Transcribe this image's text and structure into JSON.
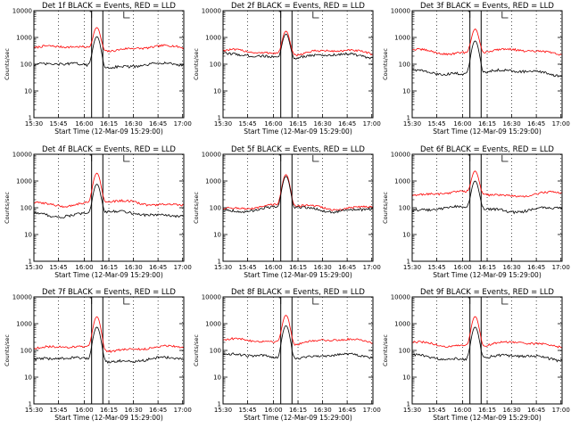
{
  "chart_data": [
    {
      "type": "line",
      "title": "Det 1f BLACK = Events, RED = LLD",
      "xlabel": "Start Time (12-Mar-09 15:29:00)",
      "ylabel": "Counts/sec",
      "ylim": [
        1,
        10000
      ],
      "y_scale": "log",
      "x_ticks": [
        "15:30",
        "15:45",
        "16:00",
        "16:15",
        "16:30",
        "16:45",
        "17:00"
      ],
      "series": [
        {
          "color": "#ff0000",
          "baseline": 400,
          "peak": 2000
        },
        {
          "color": "#000000",
          "baseline": 90,
          "peak": 1000
        }
      ]
    },
    {
      "type": "line",
      "title": "Det 2f BLACK = Events, RED = LLD",
      "xlabel": "Start Time (12-Mar-09 15:29:00)",
      "ylabel": "Counts/sec",
      "ylim": [
        1,
        10000
      ],
      "y_scale": "log",
      "x_ticks": [
        "15:30",
        "15:45",
        "16:00",
        "16:15",
        "16:30",
        "16:45",
        "17:00"
      ],
      "series": [
        {
          "color": "#ff0000",
          "baseline": 280,
          "peak": 1500
        },
        {
          "color": "#000000",
          "baseline": 200,
          "peak": 1200
        }
      ]
    },
    {
      "type": "line",
      "title": "Det 3f BLACK = Events, RED = LLD",
      "xlabel": "Start Time (12-Mar-09 15:29:00)",
      "ylabel": "Counts/sec",
      "ylim": [
        1,
        10000
      ],
      "y_scale": "log",
      "x_ticks": [
        "15:30",
        "15:45",
        "16:00",
        "16:15",
        "16:30",
        "16:45",
        "17:00"
      ],
      "series": [
        {
          "color": "#ff0000",
          "baseline": 300,
          "peak": 1800
        },
        {
          "color": "#000000",
          "baseline": 50,
          "peak": 700
        }
      ]
    },
    {
      "type": "line",
      "title": "Det 4f BLACK = Events, RED = LLD",
      "xlabel": "Start Time (12-Mar-09 15:29:00)",
      "ylabel": "Counts/sec",
      "ylim": [
        1,
        10000
      ],
      "y_scale": "log",
      "x_ticks": [
        "15:30",
        "15:45",
        "16:00",
        "16:15",
        "16:30",
        "16:45",
        "17:00"
      ],
      "series": [
        {
          "color": "#ff0000",
          "baseline": 150,
          "peak": 1800
        },
        {
          "color": "#000000",
          "baseline": 60,
          "peak": 700
        }
      ]
    },
    {
      "type": "line",
      "title": "Det 5f BLACK = Events, RED = LLD",
      "xlabel": "Start Time (12-Mar-09 15:29:00)",
      "ylabel": "Counts/sec",
      "ylim": [
        1,
        10000
      ],
      "y_scale": "log",
      "x_ticks": [
        "15:30",
        "15:45",
        "16:00",
        "16:15",
        "16:30",
        "16:45",
        "17:00"
      ],
      "series": [
        {
          "color": "#ff0000",
          "baseline": 110,
          "peak": 1600
        },
        {
          "color": "#000000",
          "baseline": 90,
          "peak": 1400
        }
      ]
    },
    {
      "type": "line",
      "title": "Det 6f BLACK = Events, RED = LLD",
      "xlabel": "Start Time (12-Mar-09 15:29:00)",
      "ylabel": "Counts/sec",
      "ylim": [
        1,
        10000
      ],
      "y_scale": "log",
      "x_ticks": [
        "15:30",
        "15:45",
        "16:00",
        "16:15",
        "16:30",
        "16:45",
        "17:00"
      ],
      "series": [
        {
          "color": "#ff0000",
          "baseline": 330,
          "peak": 2000
        },
        {
          "color": "#000000",
          "baseline": 90,
          "peak": 900
        }
      ]
    },
    {
      "type": "line",
      "title": "Det 7f BLACK = Events, RED = LLD",
      "xlabel": "Start Time (12-Mar-09 15:29:00)",
      "ylabel": "Counts/sec",
      "ylim": [
        1,
        10000
      ],
      "y_scale": "log",
      "x_ticks": [
        "15:30",
        "15:45",
        "16:00",
        "16:15",
        "16:30",
        "16:45",
        "17:00"
      ],
      "series": [
        {
          "color": "#ff0000",
          "baseline": 120,
          "peak": 1700
        },
        {
          "color": "#000000",
          "baseline": 45,
          "peak": 700
        }
      ]
    },
    {
      "type": "line",
      "title": "Det 8f BLACK = Events, RED = LLD",
      "xlabel": "Start Time (12-Mar-09 15:29:00)",
      "ylabel": "Counts/sec",
      "ylim": [
        1,
        10000
      ],
      "y_scale": "log",
      "x_ticks": [
        "15:30",
        "15:45",
        "16:00",
        "16:15",
        "16:30",
        "16:45",
        "17:00"
      ],
      "series": [
        {
          "color": "#ff0000",
          "baseline": 220,
          "peak": 1900
        },
        {
          "color": "#000000",
          "baseline": 60,
          "peak": 800
        }
      ]
    },
    {
      "type": "line",
      "title": "Det 9f BLACK = Events, RED = LLD",
      "xlabel": "Start Time (12-Mar-09 15:29:00)",
      "ylabel": "Counts/sec",
      "ylim": [
        1,
        10000
      ],
      "y_scale": "log",
      "x_ticks": [
        "15:30",
        "15:45",
        "16:00",
        "16:15",
        "16:30",
        "16:45",
        "17:00"
      ],
      "series": [
        {
          "color": "#ff0000",
          "baseline": 170,
          "peak": 1700
        },
        {
          "color": "#000000",
          "baseline": 55,
          "peak": 700
        }
      ]
    }
  ]
}
